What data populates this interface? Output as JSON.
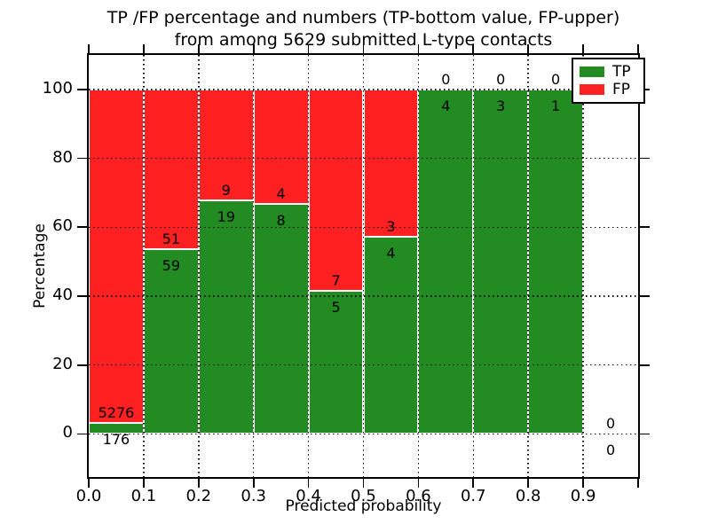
{
  "chart_data": {
    "type": "bar",
    "stacked": true,
    "title": [
      "TP /FP percentage and numbers (TP-bottom value, FP-upper)",
      "from among 5629 submitted L-type contacts"
    ],
    "xlabel": "Predicted probability",
    "ylabel": "Percentage",
    "x_ticks": [
      "0.0",
      "0.1",
      "0.2",
      "0.3",
      "0.4",
      "0.5",
      "0.6",
      "0.7",
      "0.8",
      "0.9"
    ],
    "y_ticks": [
      0,
      20,
      40,
      60,
      80,
      100
    ],
    "xlim": [
      0.0,
      1.0
    ],
    "ylim": [
      -12.5,
      110
    ],
    "bin_width": 0.1,
    "grid": true,
    "colors": {
      "tp": "#228b22",
      "fp": "#ff2121"
    },
    "legend": {
      "position": "upper right",
      "entries": [
        {
          "series": "tp",
          "label": "TP"
        },
        {
          "series": "fp",
          "label": "FP"
        }
      ]
    },
    "bins": [
      {
        "range": "0.0-0.1",
        "tp": 176,
        "fp": 5276
      },
      {
        "range": "0.1-0.2",
        "tp": 59,
        "fp": 51
      },
      {
        "range": "0.2-0.3",
        "tp": 19,
        "fp": 9
      },
      {
        "range": "0.3-0.4",
        "tp": 8,
        "fp": 4
      },
      {
        "range": "0.4-0.5",
        "tp": 5,
        "fp": 7
      },
      {
        "range": "0.5-0.6",
        "tp": 4,
        "fp": 3
      },
      {
        "range": "0.6-0.7",
        "tp": 4,
        "fp": 0
      },
      {
        "range": "0.7-0.8",
        "tp": 3,
        "fp": 0
      },
      {
        "range": "0.8-0.9",
        "tp": 1,
        "fp": 0
      },
      {
        "range": "0.9-1.0",
        "tp": 0,
        "fp": 0
      }
    ]
  }
}
